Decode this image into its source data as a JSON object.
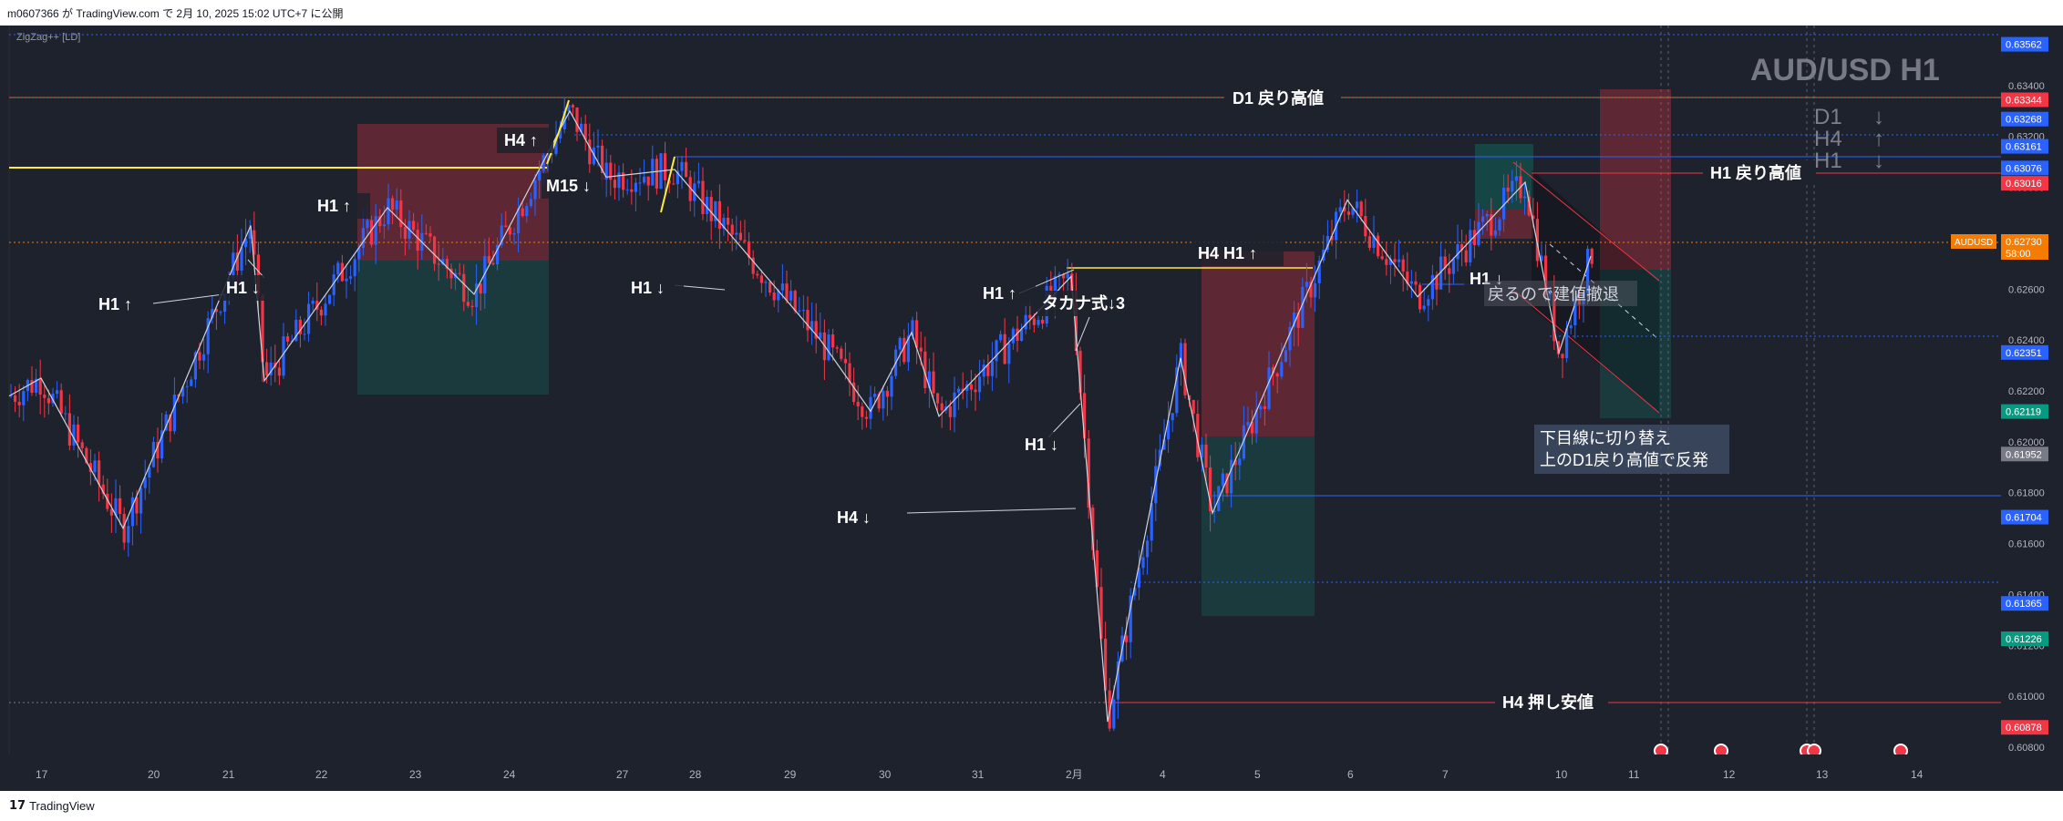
{
  "header": {
    "publish_text": "m0607366 が TradingView.com で 2月 10, 2025 15:02 UTC+7 に公開"
  },
  "indicator": {
    "label": "ZigZag++ [LD]"
  },
  "footer": {
    "brand": "TradingView",
    "logo": "tradingview-logo-icon"
  },
  "colors": {
    "background": "#1e222d",
    "candle_up": "#2962ff",
    "candle_down": "#f23645",
    "zigzag": "#d1d4dc",
    "yellow_level": "#ffeb3b",
    "green_level": "#4caf50",
    "blue_level": "#2962ff",
    "red_level": "#f23645",
    "current_price": "#f57c00"
  },
  "events": {
    "flag_icons": [
      "australia-flag-icon",
      "us-flag-icon",
      "us-flag-icon",
      "us-flag-icon",
      "us-flag-icon"
    ]
  },
  "chart_data": {
    "type": "candlestick",
    "symbol": "AUDUSD",
    "title": "AUD/USD H1",
    "ylim": [
      0.608,
      0.636
    ],
    "price_ticks": [
      "0.62400",
      "0.62200",
      "0.62000",
      "0.61800",
      "0.61600",
      "0.61400",
      "0.61200",
      "0.61000",
      "0.60800",
      "0.62600",
      "0.62800",
      "0.63000",
      "0.63200",
      "0.63400"
    ],
    "time_ticks": [
      "17",
      "20",
      "21",
      "22",
      "23",
      "24",
      "27",
      "28",
      "29",
      "30",
      "31",
      "2月",
      "4",
      "5",
      "6",
      "7",
      "10",
      "11",
      "12",
      "13",
      "14"
    ],
    "price_badges": [
      {
        "value": "0.63562",
        "color": "#2962ff"
      },
      {
        "value": "0.63344",
        "color": "#f23645"
      },
      {
        "value": "0.63268",
        "color": "#2962ff"
      },
      {
        "value": "0.63161",
        "color": "#2962ff"
      },
      {
        "value": "0.63076",
        "color": "#2962ff"
      },
      {
        "value": "0.63016",
        "color": "#f23645"
      },
      {
        "value": "0.62351",
        "color": "#2962ff"
      },
      {
        "value": "0.62119",
        "color": "#089981"
      },
      {
        "value": "0.61952",
        "color": "#787b86"
      },
      {
        "value": "0.61704",
        "color": "#2962ff"
      },
      {
        "value": "0.61365",
        "color": "#2962ff"
      },
      {
        "value": "0.61226",
        "color": "#089981"
      },
      {
        "value": "0.60878",
        "color": "#f23645"
      }
    ],
    "current_price": {
      "symbol": "AUDUSD",
      "value": "0.62730",
      "countdown": "58:00"
    },
    "levels": [
      {
        "label": "D1 戻り高値",
        "price": 0.6328
      },
      {
        "label": "H1 戻り高値",
        "price": 0.6302
      },
      {
        "label": "H4 押し安値",
        "price": 0.6088
      }
    ],
    "annotations": [
      "H1 ↑",
      "H1 ↓",
      "H1 ↑",
      "H4 ↑",
      "M15 ↓",
      "H1 ↓",
      "H1 ↑",
      "タカナ式↓3",
      "H1 ↓",
      "H4 ↓",
      "H4 H1 ↑",
      "H1 ↓",
      "戻るので建値撤退",
      "下目線に切り替え",
      "上のD1戻り高値で反発"
    ],
    "trend_legend": [
      "D1",
      "H4",
      "H1"
    ],
    "trend_arrows": [
      "↓",
      "↑",
      "↓"
    ],
    "zigzag_prices": [
      0.6218,
      0.6225,
      0.6166,
      0.6285,
      0.6224,
      0.6292,
      0.6258,
      0.633,
      0.6304,
      0.6307,
      0.624,
      0.6212,
      0.6243,
      0.621,
      0.6265,
      0.609,
      0.6233,
      0.6172,
      0.6295,
      0.6257,
      0.6302,
      0.6235,
      0.6273
    ]
  }
}
